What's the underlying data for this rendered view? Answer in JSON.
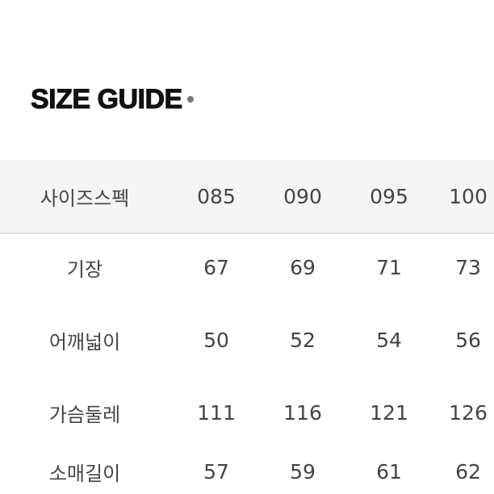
{
  "title": "SIZE GUIDE",
  "table": {
    "header": [
      "사이즈스펙",
      "085",
      "090",
      "095",
      "100"
    ],
    "rows": [
      [
        "기장",
        "67",
        "69",
        "71",
        "73"
      ],
      [
        "어깨넓이",
        "50",
        "52",
        "54",
        "56"
      ],
      [
        "가슴둘레",
        "111",
        "116",
        "121",
        "126"
      ],
      [
        "소매길이",
        "57",
        "59",
        "61",
        "62"
      ]
    ]
  }
}
